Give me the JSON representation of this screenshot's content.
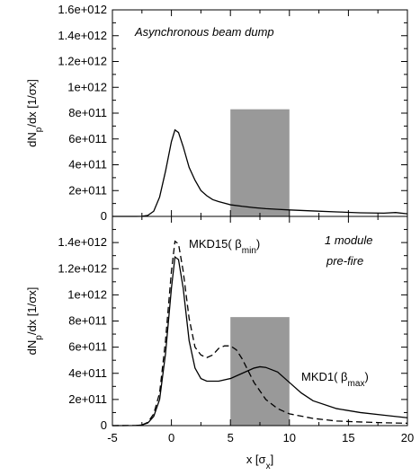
{
  "chart_data": [
    {
      "type": "area",
      "panel": "top",
      "ylabel_main": "dN",
      "ylabel_sub": "p",
      "ylabel_rest": "/dx  [1/σx]",
      "ylim": [
        0,
        1600000000000.0
      ],
      "xlim": [
        -5,
        20
      ],
      "yticks": [
        "0",
        "2e+011",
        "4e+011",
        "6e+011",
        "8e+011",
        "1e+012",
        "1.2e+012",
        "1.4e+012",
        "1.6e+012"
      ],
      "annotation": "Asynchronous beam dump",
      "shaded_band": {
        "x": [
          5,
          10
        ],
        "y": [
          0,
          830000000000.0
        ],
        "color": "#999999"
      },
      "series": [
        {
          "style": "solid",
          "x": [
            -5,
            -3,
            -2.5,
            -2,
            -1.5,
            -1,
            -0.5,
            0,
            0.3,
            0.6,
            1,
            1.5,
            2,
            2.5,
            3,
            3.5,
            4,
            5,
            6,
            7,
            8,
            9,
            10,
            12,
            14,
            16,
            18,
            19,
            20
          ],
          "y": [
            0,
            0,
            1000000000.0,
            8000000000.0,
            40000000000.0,
            150000000000.0,
            350000000000.0,
            580000000000.0,
            670000000000.0,
            650000000000.0,
            540000000000.0,
            380000000000.0,
            280000000000.0,
            200000000000.0,
            160000000000.0,
            130000000000.0,
            115000000000.0,
            90000000000.0,
            78000000000.0,
            68000000000.0,
            60000000000.0,
            55000000000.0,
            50000000000.0,
            42000000000.0,
            35000000000.0,
            28000000000.0,
            25000000000.0,
            30000000000.0,
            20000000000.0
          ]
        }
      ]
    },
    {
      "type": "line",
      "panel": "bottom",
      "ylabel_main": "dN",
      "ylabel_sub": "p",
      "ylabel_rest": "/dx  [1/σx]",
      "xlabel_main": "x [σ",
      "xlabel_sub": "x",
      "xlabel_end": "]",
      "ylim": [
        0,
        1600000000000.0
      ],
      "xlim": [
        -5,
        20
      ],
      "yticks": [
        "0",
        "2e+011",
        "4e+011",
        "6e+011",
        "8e+011",
        "1e+012",
        "1.2e+012",
        "1.4e+012"
      ],
      "xticks": [
        "-5",
        "0",
        "5",
        "10",
        "15",
        "20"
      ],
      "annotation_line1": "1 module",
      "annotation_line2": "pre-fire",
      "label_dashed_main": "MKD15( β",
      "label_dashed_sub": "min",
      "label_dashed_end": ")",
      "label_solid_main": "MKD1( β",
      "label_solid_sub": "max",
      "label_solid_end": ")",
      "shaded_band": {
        "x": [
          5,
          10
        ],
        "y": [
          0,
          830000000000.0
        ],
        "color": "#999999"
      },
      "series": [
        {
          "style": "solid",
          "x": [
            -5,
            -3,
            -2.5,
            -2,
            -1.5,
            -1,
            -0.5,
            0,
            0.3,
            0.6,
            1,
            1.5,
            2,
            2.5,
            3,
            3.5,
            4,
            5,
            6,
            7,
            7.5,
            8,
            9,
            10,
            11,
            12,
            14,
            16,
            18,
            20
          ],
          "y": [
            0,
            1000000000.0,
            5000000000.0,
            20000000000.0,
            70000000000.0,
            200000000000.0,
            550000000000.0,
            1050000000000.0,
            1290000000000.0,
            1270000000000.0,
            1050000000000.0,
            650000000000.0,
            440000000000.0,
            360000000000.0,
            340000000000.0,
            340000000000.0,
            340000000000.0,
            360000000000.0,
            400000000000.0,
            440000000000.0,
            450000000000.0,
            445000000000.0,
            410000000000.0,
            330000000000.0,
            250000000000.0,
            190000000000.0,
            130000000000.0,
            100000000000.0,
            80000000000.0,
            60000000000.0
          ]
        },
        {
          "style": "dashed",
          "x": [
            -5,
            -3,
            -2.5,
            -2,
            -1.5,
            -1,
            -0.5,
            0,
            0.3,
            0.6,
            1,
            1.5,
            2,
            2.5,
            3,
            3.5,
            4,
            4.5,
            5,
            5.5,
            6,
            6.5,
            7,
            8,
            9,
            10,
            12,
            14,
            16,
            18,
            20
          ],
          "y": [
            0,
            1000000000.0,
            5000000000.0,
            25000000000.0,
            90000000000.0,
            250000000000.0,
            650000000000.0,
            1180000000000.0,
            1410000000000.0,
            1390000000000.0,
            1180000000000.0,
            820000000000.0,
            600000000000.0,
            540000000000.0,
            520000000000.0,
            540000000000.0,
            590000000000.0,
            610000000000.0,
            610000000000.0,
            580000000000.0,
            510000000000.0,
            420000000000.0,
            330000000000.0,
            200000000000.0,
            130000000000.0,
            90000000000.0,
            55000000000.0,
            35000000000.0,
            28000000000.0,
            22000000000.0,
            18000000000.0
          ]
        }
      ]
    }
  ]
}
